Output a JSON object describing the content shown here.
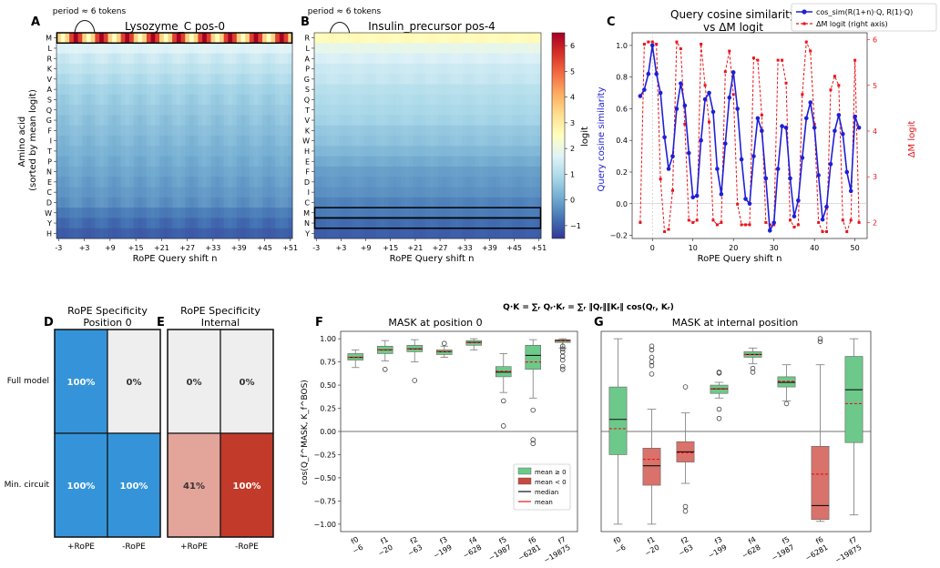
{
  "panels": {
    "A": {
      "letter": "A",
      "title": "Lysozyme_C pos-0",
      "annotation": "period ≈ 6 tokens",
      "ylabel": "Amino acid (sorted by mean logit)",
      "ylabel_lines": [
        "Amino acid",
        "(sorted by mean logit)"
      ],
      "xlabel": "RoPE Query shift  n",
      "rows": [
        "M",
        "L",
        "R",
        "K",
        "V",
        "A",
        "S",
        "Q",
        "G",
        "F",
        "I",
        "T",
        "P",
        "N",
        "E",
        "C",
        "D",
        "W",
        "Y",
        "H"
      ],
      "xticks": [
        "-3",
        "+3",
        "+9",
        "+15",
        "+21",
        "+27",
        "+33",
        "+39",
        "+45",
        "+51"
      ],
      "highlight_row": "M"
    },
    "B": {
      "letter": "B",
      "title": "Insulin_precursor pos-4",
      "annotation": "period ≈ 6 tokens",
      "xlabel": "RoPE Query shift  n",
      "rows": [
        "R",
        "L",
        "A",
        "P",
        "G",
        "S",
        "Q",
        "T",
        "V",
        "K",
        "W",
        "H",
        "E",
        "F",
        "D",
        "I",
        "C",
        "M",
        "N",
        "Y"
      ],
      "xticks": [
        "-3",
        "+3",
        "+9",
        "+15",
        "+21",
        "+27",
        "+33",
        "+39",
        "+45",
        "+51"
      ],
      "highlight_rows": [
        "M",
        "N"
      ],
      "colorbar_label": "logit",
      "colorbar_ticks": [
        "6",
        "5",
        "4",
        "3",
        "2",
        "1",
        "0",
        "−1"
      ]
    },
    "C": {
      "letter": "C",
      "title": "Query cosine similarity",
      "subtitle": "vs ΔM logit",
      "ylabel_left": "Query cosine similarity",
      "ylabel_right": "ΔM logit",
      "xlabel": "RoPE Query shift  n",
      "legend": [
        "cos_sim(R(1+n)·Q,  R(1)·Q)",
        "ΔM logit (right axis)"
      ],
      "left_ticks": [
        "1.0",
        "0.8",
        "0.6",
        "0.4",
        "0.2",
        "0.0",
        "−0.2"
      ],
      "right_ticks": [
        "6",
        "5",
        "4",
        "3",
        "2"
      ],
      "xticks": [
        "0",
        "10",
        "20",
        "30",
        "40",
        "50"
      ]
    },
    "D": {
      "letter": "D",
      "title_lines": [
        "RoPE Specificity",
        "Position 0"
      ],
      "row_labels": [
        "Full model",
        "Min. circuit"
      ],
      "col_labels": [
        "+RoPE",
        "-RoPE"
      ],
      "cells": [
        [
          "100%",
          "0%"
        ],
        [
          "100%",
          "100%"
        ]
      ]
    },
    "E": {
      "letter": "E",
      "title_lines": [
        "RoPE Specificity",
        "Internal"
      ],
      "col_labels": [
        "+RoPE",
        "-RoPE"
      ],
      "cells": [
        [
          "0%",
          "0%"
        ],
        [
          "41%",
          "100%"
        ]
      ]
    },
    "F": {
      "letter": "F",
      "title": "MASK at position 0",
      "formula": "Q·K = ∑ᵣ Qᵣ·Kᵣ = ∑ᵣ ‖Qᵣ‖‖Kᵣ‖ cos(Qᵣ, Kᵣ)",
      "ylabel": "cos(Q_f^MASK, K_f^BOS)",
      "ytick_labels": [
        "1.00",
        "0.75",
        "0.50",
        "0.25",
        "0.00",
        "−0.25",
        "−0.50",
        "−0.75",
        "−1.00"
      ],
      "xcat": [
        [
          "f0",
          "−6"
        ],
        [
          "f1",
          "−20"
        ],
        [
          "f2",
          "−63"
        ],
        [
          "f3",
          "−199"
        ],
        [
          "f4",
          "−628"
        ],
        [
          "f5",
          "−1987"
        ],
        [
          "f6",
          "−6281"
        ],
        [
          "f7",
          "−19875"
        ]
      ],
      "legend": [
        "mean ≥ 0",
        "mean < 0",
        "median",
        "mean"
      ]
    },
    "G": {
      "letter": "G",
      "title": "MASK at internal position",
      "xcat": [
        [
          "f0",
          "−6"
        ],
        [
          "f1",
          "−20"
        ],
        [
          "f2",
          "−63"
        ],
        [
          "f3",
          "−199"
        ],
        [
          "f4",
          "−628"
        ],
        [
          "f5",
          "−1987"
        ],
        [
          "f6",
          "−6281"
        ],
        [
          "f7",
          "−19875"
        ]
      ]
    }
  },
  "colors": {
    "blue_line": "#1f1fd6",
    "red_line": "#e8141a",
    "green_box": "#6cc98a",
    "red_box": "#d9726a",
    "d_blue": "#3594d9",
    "e_red_dark": "#c23b2a",
    "e_red_light": "#e3a49a",
    "gray_cell": "#efeeee"
  },
  "chart_data": [
    {
      "type": "heatmap",
      "panel": "A",
      "title": "Lysozyme_C pos-0",
      "xlabel": "RoPE Query shift  n",
      "ylabel": "Amino acid (sorted by mean logit)",
      "x_range": [
        -3,
        51
      ],
      "rows": [
        "M",
        "L",
        "R",
        "K",
        "V",
        "A",
        "S",
        "Q",
        "G",
        "F",
        "I",
        "T",
        "P",
        "N",
        "E",
        "C",
        "D",
        "W",
        "Y",
        "H"
      ],
      "row_mean_logit": [
        4.6,
        1.7,
        1.4,
        1.2,
        1.0,
        0.8,
        0.7,
        0.6,
        0.5,
        0.4,
        0.3,
        0.2,
        0.1,
        0.0,
        -0.1,
        -0.2,
        -0.3,
        -0.6,
        -0.8,
        -1.0
      ],
      "M_row_period": 6,
      "M_row_range": [
        2.5,
        6.5
      ]
    },
    {
      "type": "heatmap",
      "panel": "B",
      "title": "Insulin_precursor pos-4",
      "xlabel": "RoPE Query shift  n",
      "x_range": [
        -3,
        51
      ],
      "rows": [
        "R",
        "L",
        "A",
        "P",
        "G",
        "S",
        "Q",
        "T",
        "V",
        "K",
        "W",
        "H",
        "E",
        "F",
        "D",
        "I",
        "C",
        "M",
        "N",
        "Y"
      ],
      "row_mean_logit": [
        2.6,
        1.9,
        1.6,
        1.4,
        1.3,
        1.1,
        1.0,
        0.9,
        0.8,
        0.6,
        0.5,
        0.3,
        0.1,
        -0.1,
        -0.2,
        -0.3,
        -0.5,
        -0.6,
        -0.8,
        -1.0
      ],
      "colorbar": {
        "label": "logit",
        "range": [
          -1.5,
          6.5
        ]
      }
    },
    {
      "type": "line",
      "panel": "C",
      "title": "Query cosine similarity vs ΔM logit",
      "xlabel": "RoPE Query shift  n",
      "ylabel": "Query cosine similarity",
      "ylabel_right": "ΔM logit",
      "xlim": [
        -5,
        53
      ],
      "ylim": [
        -0.22,
        1.08
      ],
      "ylim_right": [
        1.65,
        6.15
      ],
      "series": [
        {
          "name": "cos_sim(R(1+n)·Q,  R(1)·Q)",
          "axis": "left",
          "x": [
            -3,
            -2,
            -1,
            0,
            1,
            2,
            3,
            4,
            5,
            6,
            7,
            8,
            9,
            10,
            11,
            12,
            13,
            14,
            15,
            16,
            17,
            18,
            19,
            20,
            21,
            22,
            23,
            24,
            25,
            26,
            27,
            28,
            29,
            30,
            31,
            32,
            33,
            34,
            35,
            36,
            37,
            38,
            39,
            40,
            41,
            42,
            43,
            44,
            45,
            46,
            47,
            48,
            49,
            50,
            51
          ],
          "y": [
            0.68,
            0.72,
            0.82,
            1.0,
            0.82,
            0.7,
            0.42,
            0.22,
            0.3,
            0.6,
            0.76,
            0.62,
            0.32,
            0.04,
            0.05,
            0.4,
            0.66,
            0.7,
            0.58,
            0.22,
            0.06,
            0.38,
            0.67,
            0.83,
            0.6,
            0.28,
            0.03,
            0.0,
            0.3,
            0.54,
            0.46,
            0.16,
            -0.17,
            -0.12,
            0.22,
            0.49,
            0.48,
            0.16,
            -0.08,
            0.02,
            0.29,
            0.54,
            0.64,
            0.48,
            0.18,
            -0.1,
            -0.02,
            0.25,
            0.46,
            0.56,
            0.44,
            0.2,
            0.08,
            0.55,
            0.48
          ]
        },
        {
          "name": "ΔM logit (right axis)",
          "axis": "right",
          "x": [
            -3,
            -2,
            -1,
            0,
            1,
            2,
            3,
            4,
            5,
            6,
            7,
            8,
            9,
            10,
            11,
            12,
            13,
            14,
            15,
            16,
            17,
            18,
            19,
            20,
            21,
            22,
            23,
            24,
            25,
            26,
            27,
            28,
            29,
            30,
            31,
            32,
            33,
            34,
            35,
            36,
            37,
            38,
            39,
            40,
            41,
            42,
            43,
            44,
            45,
            46,
            47,
            48,
            49,
            50,
            51
          ],
          "y": [
            2.0,
            5.9,
            5.95,
            5.95,
            5.9,
            2.95,
            1.8,
            1.85,
            2.7,
            5.95,
            5.8,
            4.15,
            2.05,
            2.0,
            2.05,
            5.9,
            5.0,
            4.2,
            2.05,
            1.95,
            2.0,
            5.3,
            5.75,
            4.8,
            2.4,
            1.95,
            1.95,
            1.95,
            5.6,
            5.55,
            4.35,
            2.0,
            1.95,
            1.95,
            5.55,
            5.55,
            5.05,
            2.05,
            1.9,
            1.95,
            4.8,
            5.95,
            5.75,
            4.15,
            2.0,
            1.8,
            1.8,
            4.9,
            5.2,
            5.0,
            2.05,
            1.8,
            2.05,
            5.55,
            2.0
          ]
        }
      ]
    },
    {
      "type": "table",
      "panel": "D",
      "title": "RoPE Specificity Position 0",
      "rows": [
        "Full model",
        "Min. circuit"
      ],
      "columns": [
        "+RoPE",
        "-RoPE"
      ],
      "values": [
        [
          100,
          0
        ],
        [
          100,
          100
        ]
      ]
    },
    {
      "type": "table",
      "panel": "E",
      "title": "RoPE Specificity Internal",
      "rows": [
        "Full model",
        "Min. circuit"
      ],
      "columns": [
        "+RoPE",
        "-RoPE"
      ],
      "values": [
        [
          0,
          0
        ],
        [
          41,
          100
        ]
      ]
    },
    {
      "type": "box",
      "panel": "F",
      "title": "MASK at position 0",
      "ylim": [
        -1.08,
        1.08
      ],
      "categories": [
        "f0 −6",
        "f1 −20",
        "f2 −63",
        "f3 −199",
        "f4 −628",
        "f5 −1987",
        "f6 −6281",
        "f7 −19875"
      ],
      "boxes": [
        {
          "whislo": 0.69,
          "q1": 0.77,
          "med": 0.8,
          "q3": 0.84,
          "whishi": 0.88,
          "mean": 0.8,
          "fliers": []
        },
        {
          "whislo": 0.76,
          "q1": 0.84,
          "med": 0.88,
          "q3": 0.92,
          "whishi": 0.98,
          "mean": 0.88,
          "fliers": [
            0.67
          ]
        },
        {
          "whislo": 0.75,
          "q1": 0.86,
          "med": 0.89,
          "q3": 0.93,
          "whishi": 0.99,
          "mean": 0.89,
          "fliers": [
            0.55
          ]
        },
        {
          "whislo": 0.8,
          "q1": 0.83,
          "med": 0.86,
          "q3": 0.88,
          "whishi": 0.92,
          "mean": 0.86,
          "fliers": [
            0.95
          ]
        },
        {
          "whislo": 0.88,
          "q1": 0.93,
          "med": 0.96,
          "q3": 0.98,
          "whishi": 1.0,
          "mean": 0.96,
          "fliers": []
        },
        {
          "whislo": 0.42,
          "q1": 0.59,
          "med": 0.64,
          "q3": 0.7,
          "whishi": 0.84,
          "mean": 0.65,
          "fliers": [
            0.33,
            0.06
          ]
        },
        {
          "whislo": 0.36,
          "q1": 0.67,
          "med": 0.82,
          "q3": 0.93,
          "whishi": 0.99,
          "mean": 0.75,
          "fliers": [
            0.23,
            -0.09,
            -0.13
          ]
        },
        {
          "whislo": 0.9,
          "q1": 0.96,
          "med": 0.98,
          "q3": 0.99,
          "whishi": 1.0,
          "mean": 0.98,
          "fliers": [
            0.92,
            0.89,
            0.86,
            0.81,
            0.77,
            0.7,
            0.67
          ]
        }
      ]
    },
    {
      "type": "box",
      "panel": "G",
      "title": "MASK at internal position",
      "ylim": [
        -1.08,
        1.08
      ],
      "categories": [
        "f0 −6",
        "f1 −20",
        "f2 −63",
        "f3 −199",
        "f4 −628",
        "f5 −1987",
        "f6 −6281",
        "f7 −19875"
      ],
      "boxes": [
        {
          "whislo": -1.0,
          "q1": -0.25,
          "med": 0.13,
          "q3": 0.48,
          "whishi": 1.0,
          "mean": 0.03,
          "fliers": []
        },
        {
          "whislo": -1.0,
          "q1": -0.58,
          "med": -0.37,
          "q3": -0.18,
          "whishi": 0.24,
          "mean": -0.3,
          "fliers": [
            0.92,
            0.88,
            0.8,
            0.75,
            0.71,
            0.62
          ]
        },
        {
          "whislo": -0.56,
          "q1": -0.33,
          "med": -0.22,
          "q3": -0.11,
          "whishi": 0.2,
          "mean": -0.23,
          "fliers": [
            0.48,
            -0.81,
            -0.86
          ]
        },
        {
          "whislo": 0.36,
          "q1": 0.41,
          "med": 0.46,
          "q3": 0.5,
          "whishi": 0.53,
          "mean": 0.46,
          "fliers": [
            0.64,
            0.63,
            0.24,
            0.14
          ]
        },
        {
          "whislo": 0.73,
          "q1": 0.8,
          "med": 0.83,
          "q3": 0.86,
          "whishi": 0.9,
          "mean": 0.83,
          "fliers": [
            0.68,
            0.64
          ]
        },
        {
          "whislo": 0.33,
          "q1": 0.48,
          "med": 0.53,
          "q3": 0.59,
          "whishi": 0.72,
          "mean": 0.54,
          "fliers": [
            0.3
          ]
        },
        {
          "whislo": -0.97,
          "q1": -0.95,
          "med": -0.8,
          "q3": -0.16,
          "whishi": 0.72,
          "mean": -0.46,
          "fliers": [
            1.0,
            0.97
          ]
        },
        {
          "whislo": -0.9,
          "q1": -0.12,
          "med": 0.45,
          "q3": 0.81,
          "whishi": 1.0,
          "mean": 0.3,
          "fliers": []
        }
      ]
    }
  ]
}
